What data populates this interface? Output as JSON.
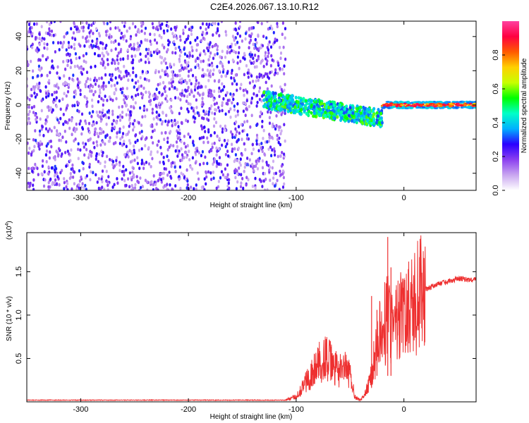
{
  "title": "C2E4.2026.067.13.10.R12",
  "chart_data": [
    {
      "type": "heatmap",
      "xlabel": "Height of straight line (km)",
      "ylabel": "Frequency (Hz)",
      "xlim": [
        -350,
        67
      ],
      "ylim": [
        -50,
        49
      ],
      "xticks": [
        -300,
        -200,
        -100,
        0
      ],
      "yticks": [
        -40,
        -20,
        0,
        20,
        40
      ],
      "colorbar": {
        "label": "Normalized spectral amplitude",
        "range": [
          0,
          1
        ],
        "ticks": [
          "0.0",
          "0.2",
          "0.4",
          "0.6",
          "0.8"
        ],
        "colormap": [
          "#ffffff",
          "#c9a6f0",
          "#8b3ff0",
          "#2a00ff",
          "#00b0ff",
          "#00ffc8",
          "#00ff00",
          "#c8ff00",
          "#ffd000",
          "#ff5a00",
          "#ff0040",
          "#ff40a0"
        ]
      },
      "description_points": [
        {
          "x_range": [
            -350,
            -110
          ],
          "freq_spread": [
            -50,
            49
          ],
          "amplitude": [
            0.0,
            0.25
          ]
        },
        {
          "x_range": [
            -130,
            -20
          ],
          "center_freq_start": 3,
          "center_freq_end": -8,
          "amplitude": [
            0.3,
            0.6
          ]
        },
        {
          "x_range": [
            -20,
            67
          ],
          "center_freq": 0,
          "amplitude": [
            0.7,
            0.95
          ]
        }
      ]
    },
    {
      "type": "line",
      "xlabel": "Height of straight line (km)",
      "ylabel": "SNR (10 * v/v)",
      "multiplier_label": "(x10",
      "multiplier_exp": "4",
      "multiplier_close": ")",
      "xlim": [
        -350,
        67
      ],
      "ylim": [
        0,
        1.95
      ],
      "xticks": [
        -300,
        -200,
        -100,
        0
      ],
      "yticks": [
        "0.5",
        "1.0",
        "1.5"
      ],
      "series": [
        {
          "name": "SNR",
          "color": "#ee3030",
          "x": [
            -350,
            -110,
            -100,
            -90,
            -80,
            -75,
            -70,
            -65,
            -60,
            -55,
            -50,
            -45,
            -40,
            -35,
            -30,
            -25,
            -20,
            -15,
            -12,
            -10,
            -5,
            0,
            5,
            10,
            15,
            20,
            25,
            30,
            35,
            40,
            45,
            50,
            55,
            60,
            67
          ],
          "y": [
            0.02,
            0.02,
            0.06,
            0.25,
            0.42,
            0.52,
            0.48,
            0.4,
            0.35,
            0.38,
            0.3,
            0.05,
            0.02,
            0.12,
            0.3,
            0.7,
            0.8,
            1.0,
            0.95,
            0.8,
            0.95,
            1.0,
            1.08,
            1.15,
            1.25,
            1.3,
            1.32,
            1.35,
            1.37,
            1.38,
            1.4,
            1.42,
            1.42,
            1.4,
            1.42
          ]
        }
      ],
      "spikes": [
        {
          "x": -30,
          "y": 1.22
        },
        {
          "x": -25,
          "y": 1.06
        },
        {
          "x": -15,
          "y": 1.9
        },
        {
          "x": -12,
          "y": 1.55
        }
      ]
    }
  ]
}
